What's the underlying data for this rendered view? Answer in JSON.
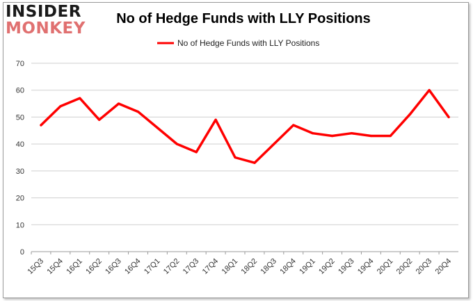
{
  "logo": {
    "line1": "INSIDER",
    "line2": "MONKEY"
  },
  "chart_data": {
    "type": "line",
    "title": "No of Hedge Funds with LLY Positions",
    "xlabel": "",
    "ylabel": "",
    "categories": [
      "15Q3",
      "15Q4",
      "16Q1",
      "16Q2",
      "16Q3",
      "16Q4",
      "17Q1",
      "17Q2",
      "17Q3",
      "17Q4",
      "18Q1",
      "18Q2",
      "18Q3",
      "18Q4",
      "19Q1",
      "19Q2",
      "19Q3",
      "19Q4",
      "20Q1",
      "20Q2",
      "20Q3",
      "20Q4"
    ],
    "series": [
      {
        "name": "No of Hedge Funds with LLY Positions",
        "values": [
          47,
          54,
          57,
          49,
          55,
          52,
          46,
          40,
          37,
          49,
          35,
          33,
          40,
          47,
          44,
          43,
          44,
          43,
          43,
          51,
          60,
          50
        ]
      }
    ],
    "ylim": [
      0,
      70
    ],
    "yticks": [
      0,
      10,
      20,
      30,
      40,
      50,
      60,
      70
    ],
    "grid": true,
    "legend": "top-center",
    "colors": {
      "series": "#ff0000",
      "grid": "#cfcfcf"
    }
  }
}
